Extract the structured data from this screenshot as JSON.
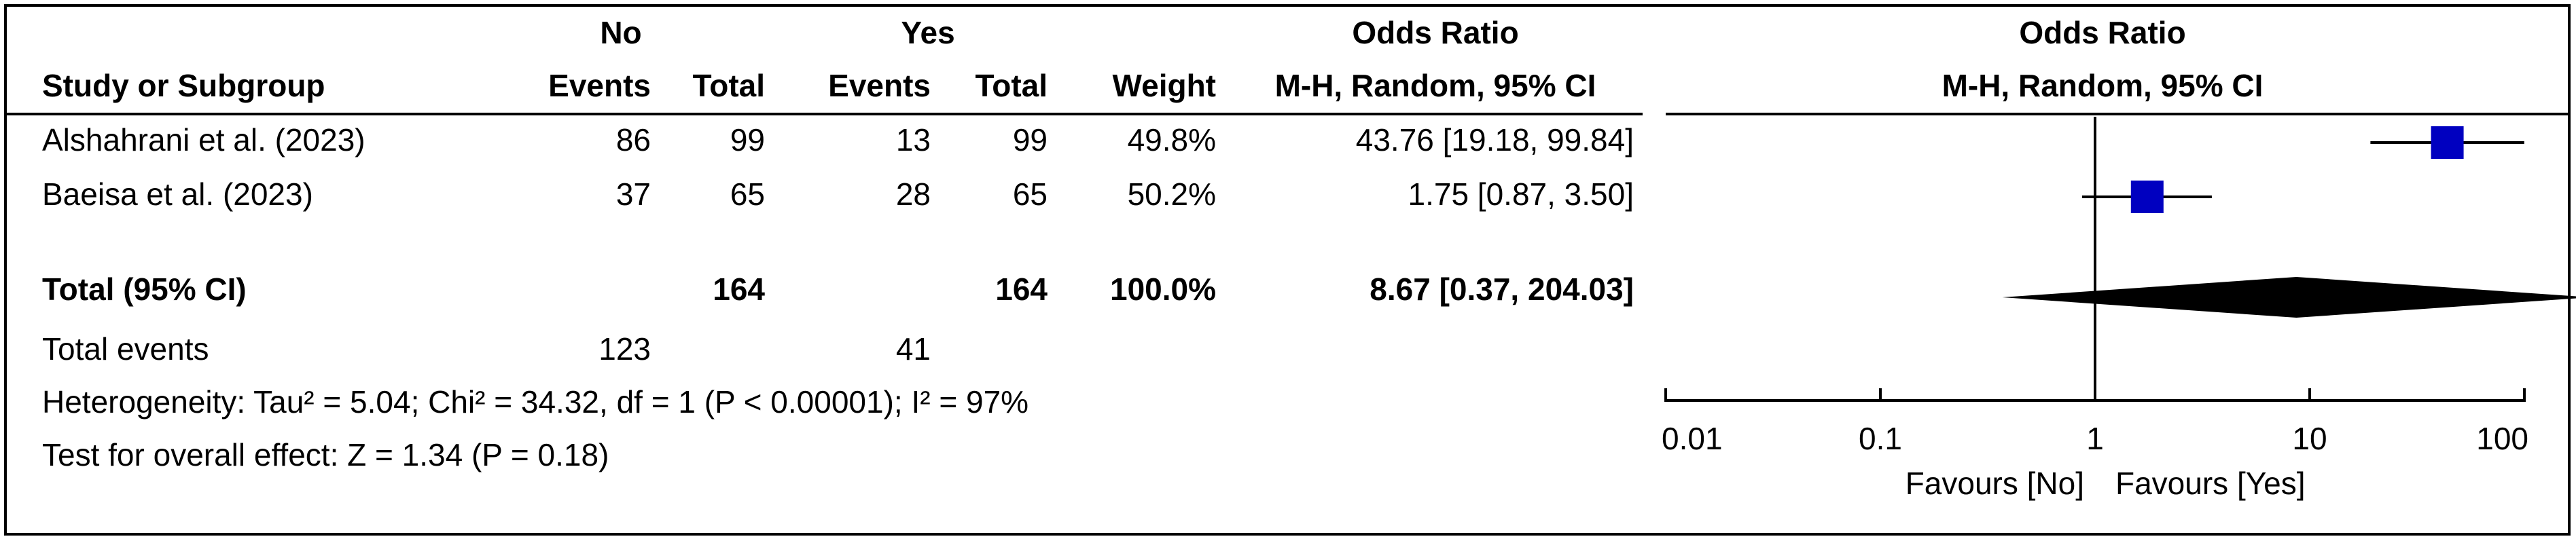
{
  "header": {
    "group_no": "No",
    "group_yes": "Yes",
    "odds_ratio": "Odds Ratio",
    "study_or_subgroup": "Study or Subgroup",
    "events": "Events",
    "total": "Total",
    "weight": "Weight",
    "method": "M-H, Random, 95% CI",
    "plot_title": "Odds Ratio",
    "plot_method": "M-H, Random, 95% CI"
  },
  "footer": {
    "total_events_label": "Total events",
    "total_events_no": "123",
    "total_events_yes": "41",
    "heterogeneity": "Heterogeneity: Tau² = 5.04; Chi² = 34.32, df = 1 (P < 0.00001); I² = 97%",
    "overall_effect": "Test for overall effect: Z = 1.34 (P = 0.18)",
    "favours_left": "Favours [No]",
    "favours_right": "Favours [Yes]"
  },
  "colors": {
    "marker": "#0000C0",
    "diamond": "#000000",
    "line": "#000000",
    "text": "#000000"
  },
  "chart_data": {
    "type": "forest",
    "scale": "log",
    "xlim": [
      0.01,
      100
    ],
    "x_ticks": [
      0.01,
      0.1,
      1,
      10,
      100
    ],
    "x_tick_labels": [
      "0.01",
      "0.1",
      "1",
      "10",
      "100"
    ],
    "reference_line": 1,
    "studies": [
      {
        "name": "Alshahrani et al. (2023)",
        "no_events": "86",
        "no_total": "99",
        "yes_events": "13",
        "yes_total": "99",
        "weight": "49.8%",
        "ci_text": "43.76 [19.18, 99.84]",
        "or": 43.76,
        "lower": 19.18,
        "upper": 99.84,
        "weight_pct": 49.8
      },
      {
        "name": "Baeisa et al. (2023)",
        "no_events": "37",
        "no_total": "65",
        "yes_events": "28",
        "yes_total": "65",
        "weight": "50.2%",
        "ci_text": "1.75 [0.87, 3.50]",
        "or": 1.75,
        "lower": 0.87,
        "upper": 3.5,
        "weight_pct": 50.2
      }
    ],
    "total": {
      "name": "Total (95% CI)",
      "no_total": "164",
      "yes_total": "164",
      "weight": "100.0%",
      "ci_text": "8.67 [0.37, 204.03]",
      "or": 8.67,
      "lower": 0.37,
      "upper": 204.03
    }
  }
}
